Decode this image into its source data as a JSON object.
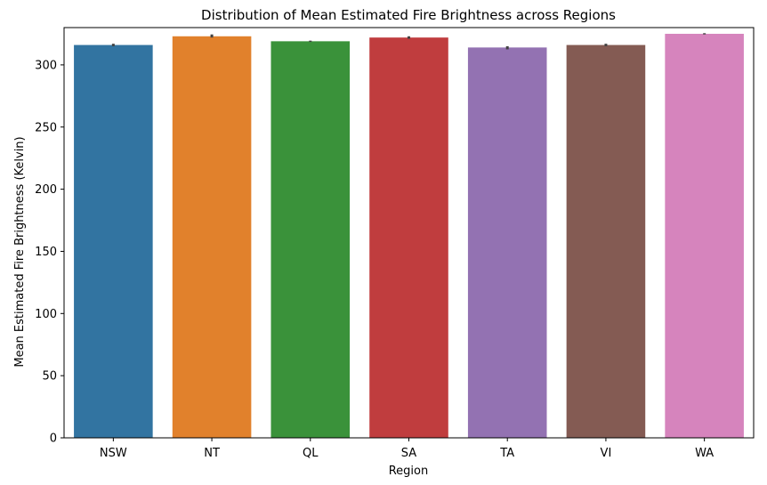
{
  "chart_data": {
    "type": "bar",
    "title": "Distribution of Mean Estimated Fire Brightness across Regions",
    "xlabel": "Region",
    "ylabel": "Mean Estimated Fire Brightness (Kelvin)",
    "ylim": [
      0,
      330
    ],
    "yticks": [
      0,
      50,
      100,
      150,
      200,
      250,
      300
    ],
    "grid": false,
    "categories": [
      "NSW",
      "NT",
      "QL",
      "SA",
      "TA",
      "VI",
      "WA"
    ],
    "values": [
      316,
      323,
      319,
      322,
      314,
      316,
      325
    ],
    "error_bars": [
      [
        315,
        317
      ],
      [
        322,
        324.5
      ],
      [
        318.5,
        319.5
      ],
      [
        321,
        323
      ],
      [
        312.5,
        315
      ],
      [
        315,
        317
      ],
      [
        324.5,
        325.5
      ]
    ],
    "colors": [
      "#3274a1",
      "#e1812c",
      "#3a923a",
      "#c03d3e",
      "#9372b2",
      "#845b53",
      "#d684bd"
    ]
  }
}
